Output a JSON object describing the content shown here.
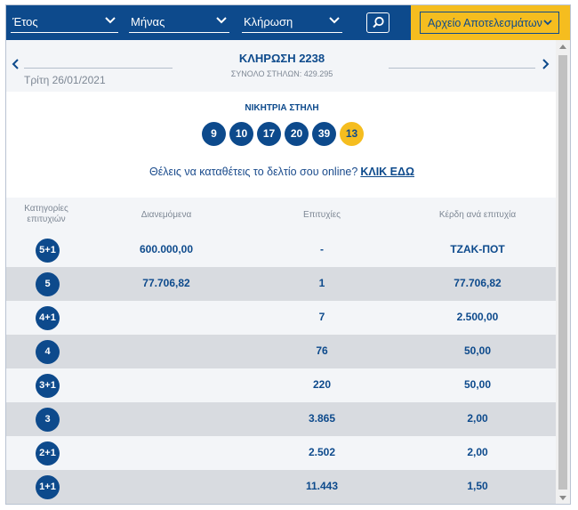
{
  "filters": {
    "year_label": "Έτος",
    "month_label": "Μήνας",
    "draw_label": "Κλήρωση",
    "archive_label": "Αρχείο Αποτελεσμάτων"
  },
  "draw": {
    "title": "ΚΛΗΡΩΣΗ 2238",
    "subtitle": "ΣΥΝΟΛΟ ΣΤΗΛΩΝ: 429.295",
    "date": "Τρίτη 26/01/2021"
  },
  "winning": {
    "label": "ΝΙΚΗΤΡΙΑ ΣΤΗΛΗ",
    "numbers": [
      "9",
      "10",
      "17",
      "20",
      "39"
    ],
    "joker": "13"
  },
  "promo": {
    "text": "Θέλεις να καταθέτεις το δελτίο σου online?",
    "link": "ΚΛΙΚ ΕΔΩ"
  },
  "table": {
    "headers": [
      "Κατηγορίες επιτυχιών",
      "Διανεμόμενα",
      "Επιτυχίες",
      "Κέρδη ανά επιτυχία"
    ],
    "rows": [
      {
        "category": "5+1",
        "distributed": "600.000,00",
        "winners": "-",
        "prize": "ΤΖΑΚ-ΠΟΤ"
      },
      {
        "category": "5",
        "distributed": "77.706,82",
        "winners": "1",
        "prize": "77.706,82"
      },
      {
        "category": "4+1",
        "distributed": "",
        "winners": "7",
        "prize": "2.500,00"
      },
      {
        "category": "4",
        "distributed": "",
        "winners": "76",
        "prize": "50,00"
      },
      {
        "category": "3+1",
        "distributed": "",
        "winners": "220",
        "prize": "50,00"
      },
      {
        "category": "3",
        "distributed": "",
        "winners": "3.865",
        "prize": "2,00"
      },
      {
        "category": "2+1",
        "distributed": "",
        "winners": "2.502",
        "prize": "2,00"
      },
      {
        "category": "1+1",
        "distributed": "",
        "winners": "11.443",
        "prize": "1,50"
      }
    ]
  }
}
